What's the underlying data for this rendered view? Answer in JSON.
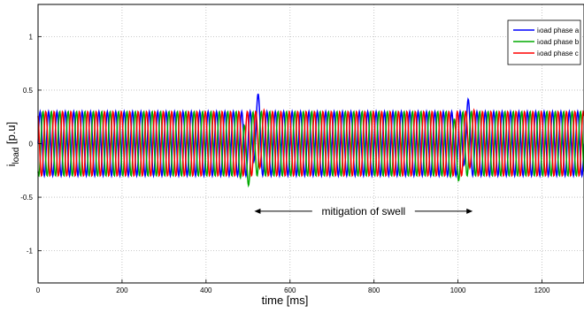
{
  "chart_data": {
    "type": "line",
    "title": "",
    "xlabel": "time [ms]",
    "ylabel": {
      "main": "i",
      "sub": "load",
      "unit": " [p.u]"
    },
    "xlim": [
      0,
      1300
    ],
    "ylim": [
      -1.3,
      1.3
    ],
    "x_ticks": [
      0,
      200,
      400,
      600,
      800,
      1000,
      1200
    ],
    "y_ticks": [
      -1,
      -0.5,
      0,
      0.5,
      1
    ],
    "grid": true,
    "legend_position": "top-right",
    "waveform": {
      "frequency_hz": 50,
      "amplitude_pu": 0.3,
      "disturbances": [
        {
          "time_ms": 500,
          "phase_a_peak": 0.55,
          "phase_b_min": -0.45
        },
        {
          "time_ms": 1000,
          "phase_a_peak": 0.48,
          "phase_b_min": -0.38
        }
      ]
    },
    "series": [
      {
        "name": "iₗoad phase a",
        "color": "#0000ff",
        "phase_deg": 0
      },
      {
        "name": "iₗoad phase b",
        "color": "#00aa00",
        "phase_deg": -120
      },
      {
        "name": "iₗoad phase c",
        "color": "#ff0000",
        "phase_deg": 120
      }
    ],
    "annotation": {
      "text": "mitigation of swell",
      "x_start": 515,
      "x_end": 1035,
      "y": -0.63
    }
  }
}
